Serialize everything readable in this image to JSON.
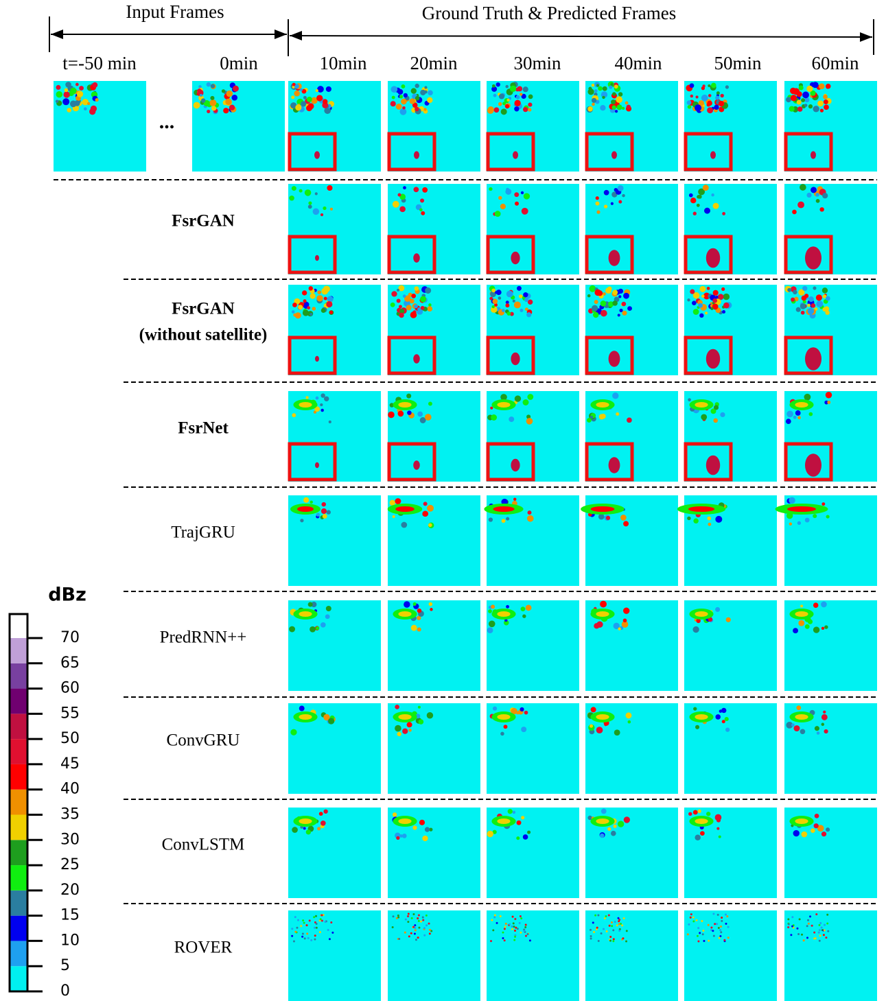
{
  "header": {
    "input_label": "Input Frames",
    "output_label": "Ground Truth & Predicted Frames",
    "ellipsis": "..."
  },
  "time_labels": [
    "t=-50 min",
    "0min",
    "10min",
    "20min",
    "30min",
    "40min",
    "50min",
    "60min"
  ],
  "models": [
    {
      "label": [
        "FsrGAN"
      ],
      "bold": true
    },
    {
      "label": [
        "FsrGAN",
        "(without satellite)"
      ],
      "bold": true
    },
    {
      "label": [
        "FsrNet"
      ],
      "bold": true
    },
    {
      "label": [
        "TrajGRU"
      ],
      "bold": false
    },
    {
      "label": [
        "PredRNN++"
      ],
      "bold": false
    },
    {
      "label": [
        "ConvGRU"
      ],
      "bold": false
    },
    {
      "label": [
        "ConvLSTM"
      ],
      "bold": false
    },
    {
      "label": [
        "ROVER"
      ],
      "bold": false
    }
  ],
  "colorbar": {
    "unit": "dBz",
    "ticks": [
      0,
      5,
      10,
      15,
      20,
      25,
      30,
      35,
      40,
      45,
      50,
      55,
      60,
      65,
      70
    ],
    "colors": [
      "#00f0f0",
      "#1ea0f0",
      "#0000f0",
      "#2a7ea0",
      "#10ee10",
      "#1e9e1e",
      "#f0d000",
      "#f09000",
      "#ff0000",
      "#e01030",
      "#c01040",
      "#700070",
      "#7840a0",
      "#c0a0d8",
      "#ffffff"
    ]
  }
}
